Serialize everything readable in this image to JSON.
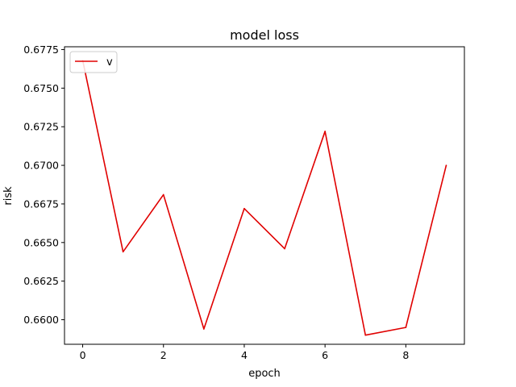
{
  "chart_data": {
    "type": "line",
    "title": "model loss",
    "xlabel": "epoch",
    "ylabel": "risk",
    "x": [
      0,
      1,
      2,
      3,
      4,
      5,
      6,
      7,
      8,
      9
    ],
    "xticks": [
      0,
      2,
      4,
      6,
      8
    ],
    "xlim": [
      -0.45,
      9.45
    ],
    "yticks": [
      0.66,
      0.6625,
      0.665,
      0.6675,
      0.67,
      0.6725,
      0.675,
      0.6775
    ],
    "ytick_labels": [
      "0.6600",
      "0.6625",
      "0.6650",
      "0.6675",
      "0.6700",
      "0.6725",
      "0.6750",
      "0.6775"
    ],
    "ylim": [
      0.65841,
      0.67768
    ],
    "grid": false,
    "legend_position": "upper left",
    "series": [
      {
        "name": "v",
        "color": "#e00000",
        "values": [
          0.6768,
          0.6644,
          0.6681,
          0.6594,
          0.6672,
          0.6646,
          0.6722,
          0.659,
          0.6595,
          0.67
        ]
      }
    ]
  }
}
